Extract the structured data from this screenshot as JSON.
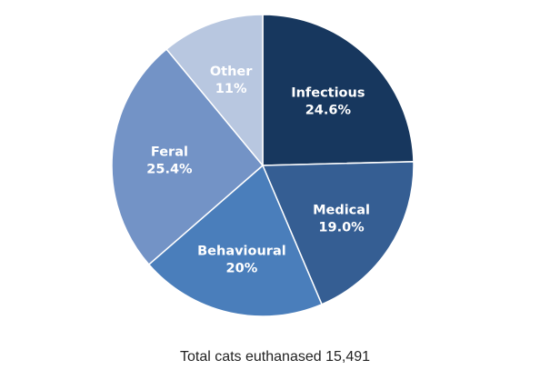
{
  "chart_data": {
    "type": "pie",
    "title": "",
    "legend": "none",
    "slices": [
      {
        "label": "Infectious",
        "value_label": "24.6%",
        "value": 24.6,
        "color": "#17375e"
      },
      {
        "label": "Medical",
        "value_label": "19.0%",
        "value": 19.0,
        "color": "#355e93"
      },
      {
        "label": "Behavioural",
        "value_label": "20%",
        "value": 20,
        "color": "#4a7ebb"
      },
      {
        "label": "Feral",
        "value_label": "25.4%",
        "value": 25.4,
        "color": "#7393c6"
      },
      {
        "label": "Other",
        "value_label": "11%",
        "value": 11,
        "color": "#b8c7e0"
      }
    ],
    "caption": "Total cats euthanased 15,491"
  }
}
